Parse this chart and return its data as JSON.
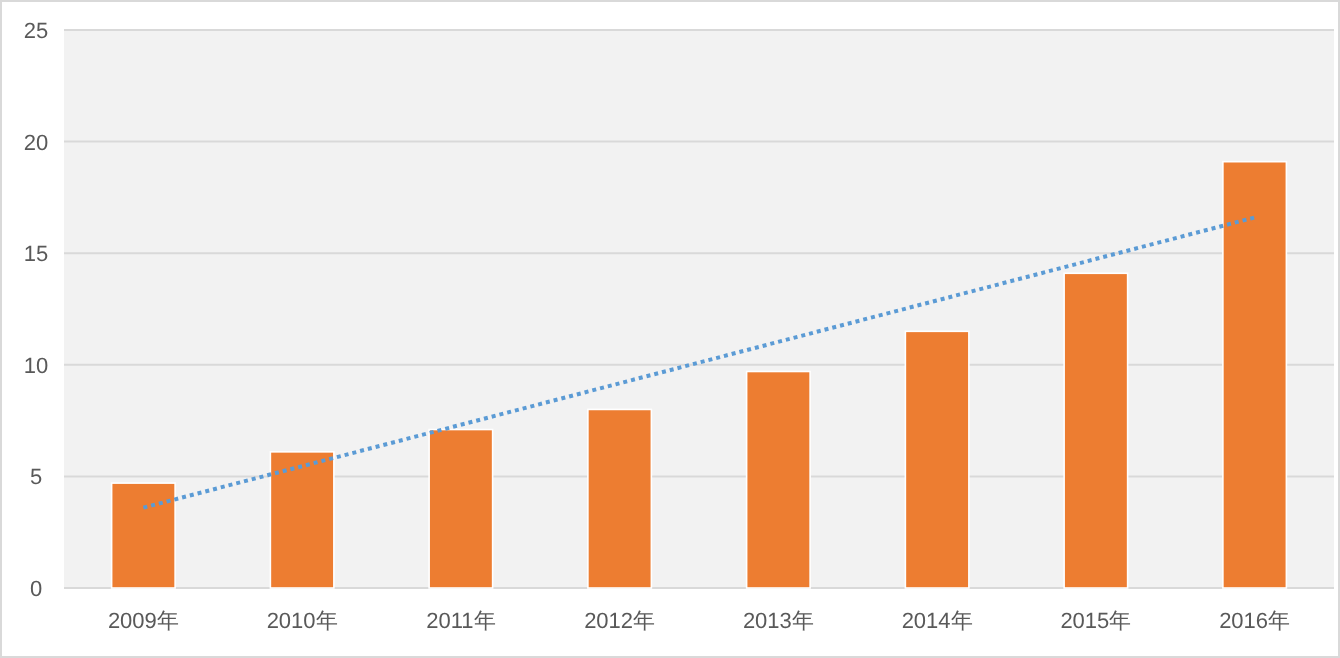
{
  "chart_data": {
    "type": "bar",
    "categories": [
      "2009年",
      "2010年",
      "2011年",
      "2012年",
      "2013年",
      "2014年",
      "2015年",
      "2016年"
    ],
    "series": [
      {
        "color": "#ed7d31",
        "values": [
          4.7,
          6.1,
          7.1,
          8.0,
          9.7,
          11.5,
          14.1,
          19.1
        ]
      },
      {
        "type": "line",
        "color": "#5b9bd5",
        "line_style": "dotted",
        "x": [
          "2009年",
          "2016年"
        ],
        "values": [
          3.6,
          16.6
        ]
      }
    ],
    "ylim": [
      0,
      25
    ],
    "yticks": [
      0,
      5,
      10,
      15,
      20,
      25
    ],
    "grid": "y"
  }
}
